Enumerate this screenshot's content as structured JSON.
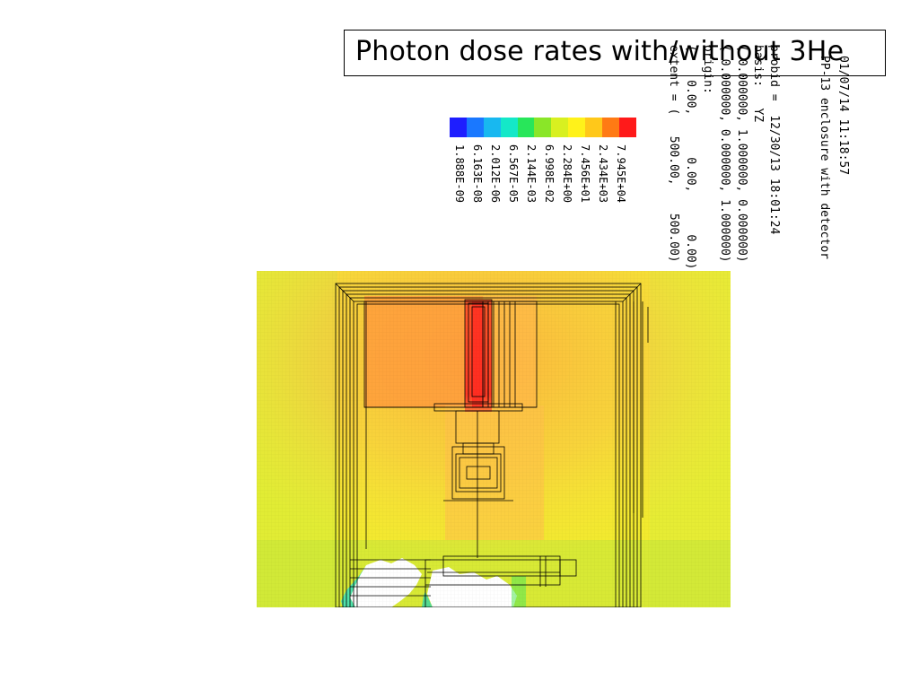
{
  "title": "Photon dose rates with/without 3He",
  "header_lines": [
    "01/07/14 11:18:57",
    "PP-13 enclosure with detector",
    "probid =  12/30/13 18:01:24",
    "basis:   YZ",
    "( 0.000000, 1.000000, 0.000000)",
    "( 0.000000, 0.000000, 1.000000)",
    "origin:",
    "(    0.00,      0.00,      0.00)",
    "extent = (   500.00,    500.00)"
  ],
  "legend": {
    "colors": [
      "#1e1eff",
      "#1a78ff",
      "#18b8f0",
      "#14e8c8",
      "#28e65a",
      "#8ae628",
      "#d8f020",
      "#fff21a",
      "#ffc81a",
      "#ff7a14",
      "#ff1a1a"
    ],
    "labels": [
      "7.945E+04",
      "2.434E+03",
      "7.456E+01",
      "2.284E+00",
      "6.998E-02",
      "2.144E-03",
      "6.567E-05",
      "2.012E-06",
      "6.163E-08",
      "1.888E-09"
    ]
  }
}
